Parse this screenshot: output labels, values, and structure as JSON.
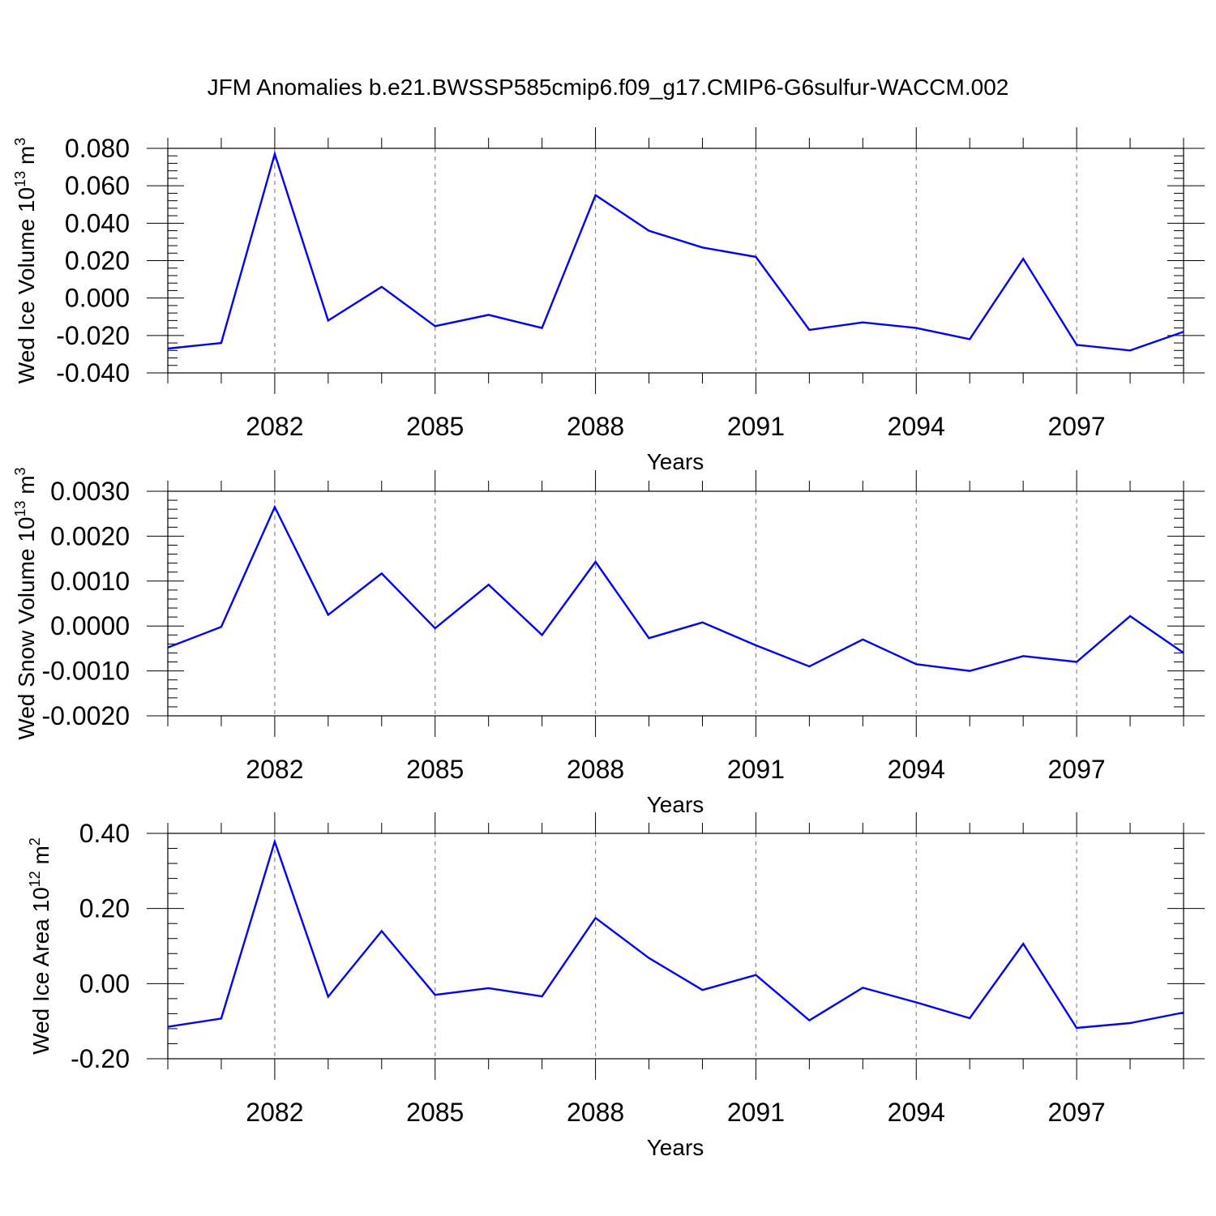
{
  "figure": {
    "title": "JFM Anomalies b.e21.BWSSP585cmip6.f09_g17.CMIP6-G6sulfur-WACCM.002"
  },
  "chart_data": [
    {
      "type": "line",
      "ylabel_main": "Wed Ice Volume 10",
      "ylabel_exp": "13",
      "ylabel_unit": " m",
      "ylabel_unit_exp": "3",
      "xlabel": "Years",
      "xlim": [
        2080,
        2099
      ],
      "ylim": [
        -0.04,
        0.08
      ],
      "yticks": [
        0.08,
        0.06,
        0.04,
        0.02,
        0.0,
        -0.02,
        -0.04
      ],
      "ytick_labels": [
        "0.080",
        "0.060",
        "0.040",
        "0.020",
        "0.000",
        "-0.020",
        "-0.040"
      ],
      "xticks": [
        2082,
        2085,
        2088,
        2091,
        2094,
        2097
      ],
      "xtick_labels": [
        "2082",
        "2085",
        "2088",
        "2091",
        "2094",
        "2097"
      ],
      "grid_x": true,
      "series": [
        {
          "color": "#0000ff",
          "x": [
            2080,
            2081,
            2082,
            2083,
            2084,
            2085,
            2086,
            2087,
            2088,
            2089,
            2090,
            2091,
            2092,
            2093,
            2094,
            2095,
            2096,
            2097,
            2098,
            2099
          ],
          "y": [
            -0.027,
            -0.024,
            0.077,
            -0.012,
            0.006,
            -0.015,
            -0.009,
            -0.016,
            0.055,
            0.036,
            0.027,
            0.022,
            -0.017,
            -0.013,
            -0.016,
            -0.022,
            0.021,
            -0.025,
            -0.028,
            -0.018
          ]
        }
      ]
    },
    {
      "type": "line",
      "ylabel_main": "Wed Snow Volume 10",
      "ylabel_exp": "13",
      "ylabel_unit": " m",
      "ylabel_unit_exp": "3",
      "xlabel": "Years",
      "xlim": [
        2080,
        2099
      ],
      "ylim": [
        -0.002,
        0.003
      ],
      "yticks": [
        0.003,
        0.002,
        0.001,
        0.0,
        -0.001,
        -0.002
      ],
      "ytick_labels": [
        "0.0030",
        "0.0020",
        "0.0010",
        "0.0000",
        "-0.0010",
        "-0.0020"
      ],
      "xticks": [
        2082,
        2085,
        2088,
        2091,
        2094,
        2097
      ],
      "xtick_labels": [
        "2082",
        "2085",
        "2088",
        "2091",
        "2094",
        "2097"
      ],
      "grid_x": true,
      "series": [
        {
          "color": "#0000ff",
          "x": [
            2080,
            2081,
            2082,
            2083,
            2084,
            2085,
            2086,
            2087,
            2088,
            2089,
            2090,
            2091,
            2092,
            2093,
            2094,
            2095,
            2096,
            2097,
            2098,
            2099
          ],
          "y": [
            -0.00048,
            -2e-05,
            0.00265,
            0.00025,
            0.00117,
            -5e-05,
            0.00092,
            -0.0002,
            0.00143,
            -0.00027,
            8e-05,
            -0.00043,
            -0.0009,
            -0.0003,
            -0.00085,
            -0.001,
            -0.00067,
            -0.0008,
            0.00022,
            -0.0006
          ]
        }
      ]
    },
    {
      "type": "line",
      "ylabel_main": "Wed Ice Area 10",
      "ylabel_exp": "12",
      "ylabel_unit": " m",
      "ylabel_unit_exp": "2",
      "xlabel": "Years",
      "xlim": [
        2080,
        2099
      ],
      "ylim": [
        -0.2,
        0.4
      ],
      "yticks": [
        0.4,
        0.2,
        0.0,
        -0.2
      ],
      "ytick_labels": [
        "0.40",
        "0.20",
        "0.00",
        "-0.20"
      ],
      "xticks": [
        2082,
        2085,
        2088,
        2091,
        2094,
        2097
      ],
      "xtick_labels": [
        "2082",
        "2085",
        "2088",
        "2091",
        "2094",
        "2097"
      ],
      "grid_x": true,
      "series": [
        {
          "color": "#0000ff",
          "x": [
            2080,
            2081,
            2082,
            2083,
            2084,
            2085,
            2086,
            2087,
            2088,
            2089,
            2090,
            2091,
            2092,
            2093,
            2094,
            2095,
            2096,
            2097,
            2098,
            2099
          ],
          "y": [
            -0.115,
            -0.093,
            0.378,
            -0.035,
            0.14,
            -0.03,
            -0.012,
            -0.034,
            0.175,
            0.068,
            -0.017,
            0.023,
            -0.098,
            -0.011,
            -0.05,
            -0.092,
            0.106,
            -0.118,
            -0.105,
            -0.077
          ]
        }
      ]
    }
  ]
}
